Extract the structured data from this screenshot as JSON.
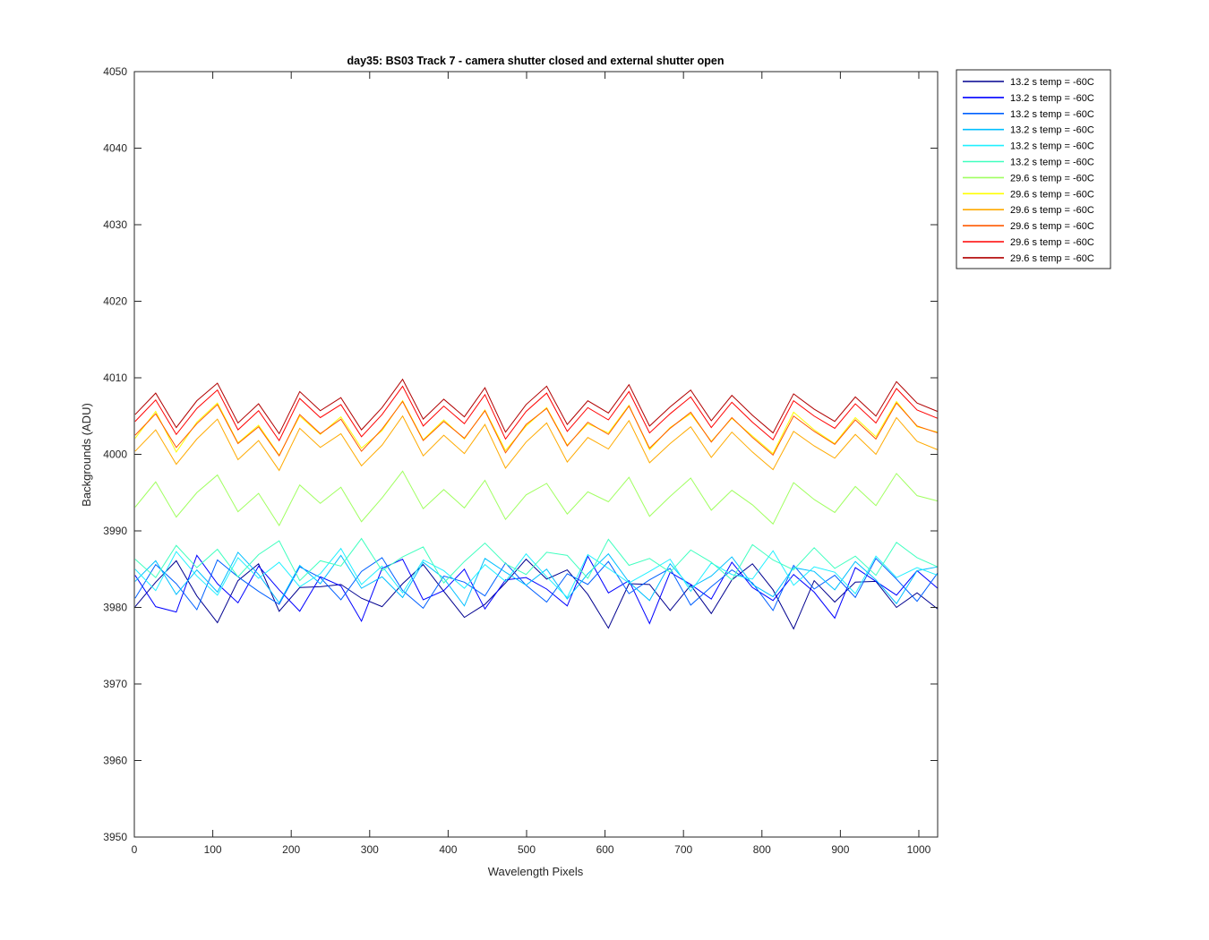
{
  "chart_data": {
    "type": "line",
    "title": "day35: BS03  Track 7 - camera shutter closed and external shutter open",
    "xlabel": "Wavelength Pixels",
    "ylabel": "Backgrounds (ADU)",
    "xlim": [
      0,
      1024
    ],
    "ylim": [
      3950,
      4050
    ],
    "xticks": [
      0,
      100,
      200,
      300,
      400,
      500,
      600,
      700,
      800,
      900,
      1000
    ],
    "yticks": [
      3950,
      3960,
      3970,
      3980,
      3990,
      4000,
      4010,
      4020,
      4030,
      4040,
      4050
    ],
    "grid": false,
    "legend_position": "outside-top-right",
    "x_start": 1,
    "x_step": 1,
    "num_points": 1024,
    "series": [
      {
        "name": "13.2 s temp = -60C",
        "color": "#00008f",
        "mean": 3982.0,
        "values": [
          3980.1,
          3983.3,
          3986.1,
          3981.5,
          3978.0,
          3983.5,
          3985.7,
          3979.5,
          3982.6,
          3982.7,
          3983.0,
          3981.2,
          3980.1,
          3983.1,
          3985.6,
          3982.1,
          3978.7,
          3980.4,
          3983.2,
          3986.3,
          3983.7,
          3984.9,
          3981.7,
          3977.3,
          3983.1,
          3983.0,
          3979.6,
          3982.9,
          3979.2,
          3983.6,
          3985.7,
          3982.3,
          3977.2,
          3983.5,
          3980.7,
          3983.3,
          3983.4,
          3980.0,
          3981.9,
          3979.8
        ]
      },
      {
        "name": "13.2 s temp = -60C",
        "color": "#0000ff",
        "mean": 3983.0,
        "values": [
          3984.2,
          3980.1,
          3979.4,
          3986.8,
          3983.1,
          3980.6,
          3985.4,
          3982.3,
          3979.5,
          3984.0,
          3982.8,
          3978.2,
          3985.1,
          3986.3,
          3981.0,
          3982.2,
          3985.0,
          3979.8,
          3983.6,
          3983.9,
          3982.4,
          3980.2,
          3986.7,
          3981.9,
          3983.5,
          3977.9,
          3984.6,
          3983.0,
          3981.1,
          3985.9,
          3982.6,
          3980.9,
          3984.3,
          3982.0,
          3978.6,
          3985.2,
          3983.4,
          3981.6,
          3984.8,
          3982.5
        ]
      },
      {
        "name": "13.2 s temp = -60C",
        "color": "#0060ff",
        "mean": 3983.5,
        "values": [
          3981.2,
          3985.6,
          3983.1,
          3979.7,
          3986.2,
          3984.0,
          3982.1,
          3980.4,
          3985.3,
          3983.9,
          3981.0,
          3984.7,
          3986.5,
          3982.2,
          3979.9,
          3984.1,
          3983.3,
          3981.5,
          3985.8,
          3982.9,
          3980.7,
          3984.4,
          3983.0,
          3986.0,
          3981.8,
          3983.6,
          3985.1,
          3980.3,
          3982.7,
          3984.9,
          3983.2,
          3979.6,
          3985.5,
          3982.4,
          3984.2,
          3981.3,
          3986.4,
          3983.7,
          3980.8,
          3984.5
        ]
      },
      {
        "name": "13.2 s temp = -60C",
        "color": "#00bfff",
        "mean": 3984.0,
        "values": [
          3983.4,
          3986.1,
          3981.7,
          3984.9,
          3982.0,
          3987.2,
          3984.3,
          3980.6,
          3985.5,
          3983.1,
          3986.8,
          3982.5,
          3984.0,
          3981.3,
          3985.9,
          3983.8,
          3980.2,
          3986.4,
          3984.6,
          3982.9,
          3985.0,
          3981.1,
          3984.4,
          3987.0,
          3983.3,
          3980.9,
          3985.7,
          3982.6,
          3984.1,
          3986.6,
          3983.0,
          3981.4,
          3985.2,
          3984.7,
          3982.3,
          3986.0,
          3983.6,
          3980.5,
          3984.8,
          3985.3
        ]
      },
      {
        "name": "13.2 s temp = -60C",
        "color": "#20f0ff",
        "mean": 3984.5,
        "values": [
          3985.0,
          3982.2,
          3987.3,
          3984.1,
          3981.6,
          3986.5,
          3983.8,
          3985.9,
          3982.7,
          3984.4,
          3987.7,
          3983.0,
          3985.4,
          3981.9,
          3986.2,
          3984.8,
          3982.5,
          3985.6,
          3983.4,
          3987.0,
          3984.0,
          3981.3,
          3986.9,
          3985.1,
          3983.2,
          3984.7,
          3986.3,
          3982.1,
          3985.8,
          3984.3,
          3983.7,
          3987.4,
          3982.9,
          3985.3,
          3984.6,
          3981.8,
          3986.7,
          3983.9,
          3985.2,
          3984.2
        ]
      },
      {
        "name": "13.2 s temp = -60C",
        "color": "#40ffbf",
        "mean": 3986.0,
        "values": [
          3986.3,
          3983.9,
          3988.1,
          3985.2,
          3987.6,
          3984.0,
          3986.9,
          3988.7,
          3983.5,
          3986.1,
          3985.4,
          3989.0,
          3984.8,
          3986.6,
          3987.9,
          3983.2,
          3986.0,
          3988.4,
          3985.7,
          3984.3,
          3987.2,
          3986.8,
          3983.8,
          3988.9,
          3985.5,
          3986.4,
          3984.6,
          3987.5,
          3985.9,
          3983.6,
          3988.2,
          3986.2,
          3984.9,
          3987.8,
          3985.1,
          3986.7,
          3984.2,
          3988.5,
          3986.5,
          3985.3
        ]
      },
      {
        "name": "29.6 s temp = -60C",
        "color": "#a0ff60",
        "mean": 3994.0,
        "values": [
          3993.1,
          3996.4,
          3991.8,
          3995.0,
          3997.3,
          3992.5,
          3994.9,
          3990.7,
          3996.0,
          3993.6,
          3995.7,
          3991.2,
          3994.3,
          3997.8,
          3992.9,
          3995.4,
          3993.0,
          3996.6,
          3991.5,
          3994.7,
          3996.2,
          3992.2,
          3995.1,
          3993.8,
          3997.0,
          3991.9,
          3994.5,
          3996.9,
          3992.7,
          3995.3,
          3993.4,
          3990.9,
          3996.3,
          3994.1,
          3992.4,
          3995.8,
          3993.3,
          3997.5,
          3994.6,
          3993.9
        ]
      },
      {
        "name": "29.6 s temp = -60C",
        "color": "#ffff00",
        "mean": 4003.0,
        "values": [
          4002.1,
          4005.6,
          4000.3,
          4004.2,
          4006.7,
          4001.5,
          4003.8,
          3999.9,
          4005.0,
          4002.6,
          4004.9,
          4000.8,
          4003.1,
          4007.0,
          4001.9,
          4004.5,
          4002.0,
          4005.8,
          4000.5,
          4003.7,
          4006.1,
          4001.2,
          4004.0,
          4002.8,
          4006.4,
          4000.6,
          4003.5,
          4005.3,
          4001.7,
          4004.7,
          4002.4,
          4000.1,
          4005.5,
          4003.2,
          4001.4,
          4004.8,
          4002.3,
          4006.9,
          4003.6,
          4002.9
        ]
      },
      {
        "name": "29.6 s temp = -60C",
        "color": "#ffaa00",
        "mean": 4001.0,
        "values": [
          4000.4,
          4003.2,
          3998.7,
          4002.0,
          4004.6,
          3999.3,
          4001.8,
          3997.9,
          4003.4,
          4000.9,
          4002.7,
          3998.5,
          4001.2,
          4005.0,
          3999.8,
          4002.5,
          4000.1,
          4003.9,
          3998.2,
          4001.6,
          4004.1,
          3999.0,
          4002.2,
          4000.7,
          4004.4,
          3998.9,
          4001.4,
          4003.6,
          3999.6,
          4002.9,
          4000.3,
          3998.0,
          4003.0,
          4001.1,
          3999.5,
          4002.6,
          4000.0,
          4004.8,
          4001.7,
          4000.6
        ]
      },
      {
        "name": "29.6 s temp = -60C",
        "color": "#ff5a00",
        "mean": 4003.0,
        "values": [
          4002.5,
          4005.3,
          4000.9,
          4004.0,
          4006.5,
          4001.4,
          4003.6,
          3999.8,
          4005.2,
          4002.7,
          4004.6,
          4000.4,
          4003.3,
          4006.9,
          4001.8,
          4004.3,
          4002.1,
          4005.7,
          4000.2,
          4003.9,
          4006.0,
          4001.1,
          4004.2,
          4002.6,
          4006.3,
          4000.8,
          4003.4,
          4005.5,
          4001.6,
          4004.8,
          4002.2,
          3999.9,
          4005.0,
          4003.0,
          4001.3,
          4004.5,
          4002.0,
          4006.7,
          4003.7,
          4002.8
        ]
      },
      {
        "name": "29.6 s temp = -60C",
        "color": "#ff0000",
        "mean": 4005.0,
        "values": [
          4004.3,
          4007.1,
          4002.6,
          4006.0,
          4008.4,
          4003.2,
          4005.7,
          4001.8,
          4007.3,
          4004.8,
          4006.5,
          4002.3,
          4005.2,
          4008.9,
          4003.7,
          4006.3,
          4004.0,
          4007.8,
          4002.0,
          4005.6,
          4008.0,
          4003.0,
          4006.1,
          4004.5,
          4008.2,
          4002.8,
          4005.3,
          4007.5,
          4003.5,
          4006.8,
          4004.2,
          4001.9,
          4007.0,
          4005.0,
          4003.4,
          4006.6,
          4004.1,
          4008.6,
          4005.8,
          4004.7
        ]
      },
      {
        "name": "29.6 s temp = -60C",
        "color": "#b00000",
        "mean": 4006.0,
        "values": [
          4005.2,
          4008.0,
          4003.5,
          4007.0,
          4009.3,
          4004.1,
          4006.6,
          4002.7,
          4008.2,
          4005.7,
          4007.4,
          4003.2,
          4006.1,
          4009.8,
          4004.6,
          4007.2,
          4004.9,
          4008.7,
          4002.9,
          4006.5,
          4008.9,
          4003.9,
          4007.0,
          4005.4,
          4009.1,
          4003.7,
          4006.2,
          4008.4,
          4004.4,
          4007.7,
          4005.1,
          4002.8,
          4007.9,
          4005.9,
          4004.3,
          4007.5,
          4005.0,
          4009.5,
          4006.7,
          4005.6
        ]
      }
    ]
  }
}
